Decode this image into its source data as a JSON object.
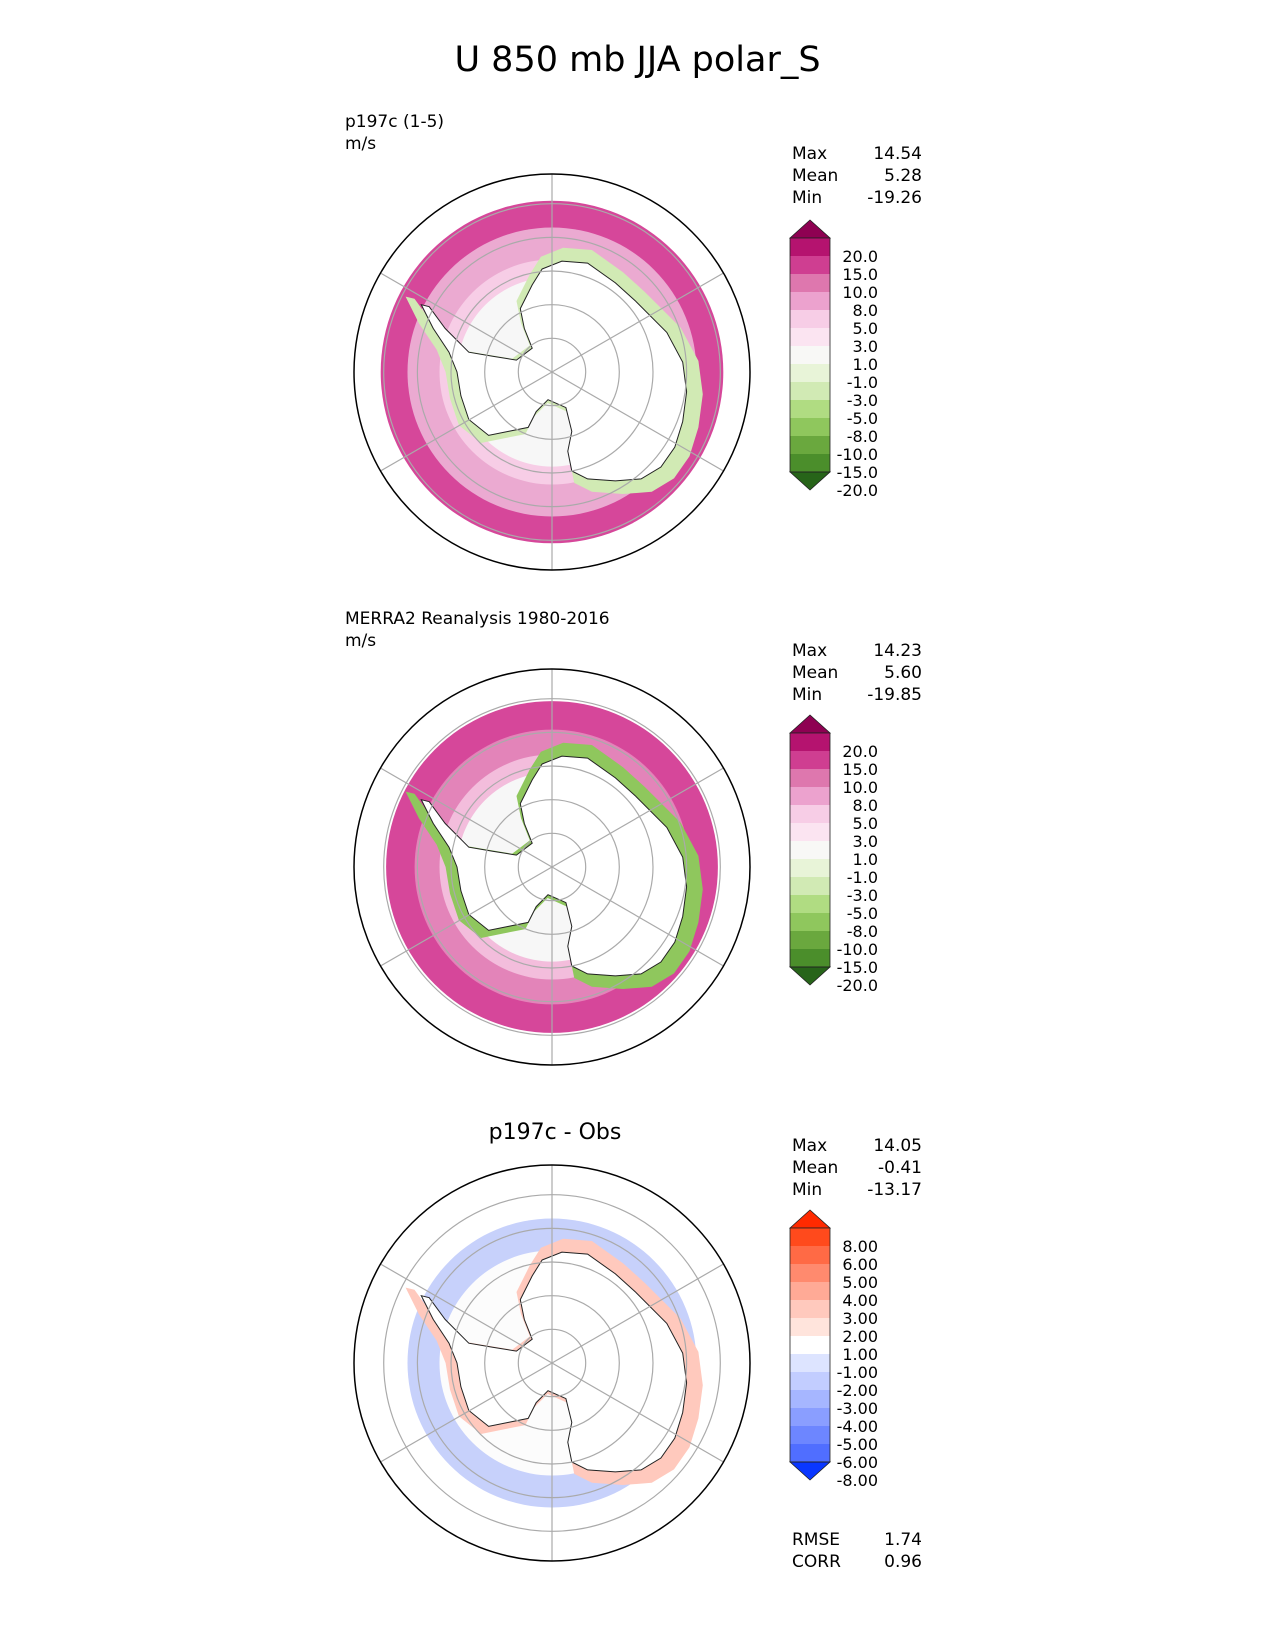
{
  "figure": {
    "title": "U 850 mb JJA polar_S"
  },
  "chart_data": [
    {
      "type": "heatmap",
      "panel": "test",
      "projection": "south-polar-stereographic",
      "title": "",
      "label_line1": "p197c (1-5)",
      "label_line2": "m/s",
      "stats": [
        {
          "label": "Max",
          "value": "14.54"
        },
        {
          "label": "Mean",
          "value": "5.28"
        },
        {
          "label": "Min",
          "value": "-19.26"
        }
      ],
      "colorbar": {
        "ticks": [
          "20.0",
          "15.0",
          "10.0",
          "8.0",
          "5.0",
          "3.0",
          "1.0",
          "-1.0",
          "-3.0",
          "-5.0",
          "-8.0",
          "-10.0",
          "-15.0",
          "-20.0"
        ],
        "colors": [
          "#8e0152",
          "#b5136f",
          "#cf3e91",
          "#de77ae",
          "#eca2ce",
          "#f7cde6",
          "#fbe4f1",
          "#f8f8f6",
          "#e8f4d8",
          "#d1eab4",
          "#b0dc82",
          "#8fc75d",
          "#6aa83e",
          "#4b8e2b",
          "#276419"
        ]
      },
      "bands": [
        {
          "level": 0.15,
          "color": "#d6479a"
        },
        {
          "level": 0.3,
          "color": "#ebaad1"
        },
        {
          "level": 0.48,
          "color": "#f7cde6"
        },
        {
          "level": 0.58,
          "color": "#f7f7f7"
        },
        {
          "level": 0.64,
          "color": "#d1eab4"
        }
      ]
    },
    {
      "type": "heatmap",
      "panel": "reference",
      "projection": "south-polar-stereographic",
      "title": "",
      "label_line1": "MERRA2 Reanalysis 1980-2016",
      "label_line2": "m/s",
      "stats": [
        {
          "label": "Max",
          "value": "14.23"
        },
        {
          "label": "Mean",
          "value": "5.60"
        },
        {
          "label": "Min",
          "value": "-19.85"
        }
      ],
      "colorbar": {
        "ticks": [
          "20.0",
          "15.0",
          "10.0",
          "8.0",
          "5.0",
          "3.0",
          "1.0",
          "-1.0",
          "-3.0",
          "-5.0",
          "-8.0",
          "-10.0",
          "-15.0",
          "-20.0"
        ],
        "colors": [
          "#8e0152",
          "#b5136f",
          "#cf3e91",
          "#de77ae",
          "#eca2ce",
          "#f7cde6",
          "#fbe4f1",
          "#f8f8f6",
          "#e8f4d8",
          "#d1eab4",
          "#b0dc82",
          "#8fc75d",
          "#6aa83e",
          "#4b8e2b",
          "#276419"
        ]
      },
      "bands": [
        {
          "level": 0.18,
          "color": "#d6479a"
        },
        {
          "level": 0.34,
          "color": "#e384b9"
        },
        {
          "level": 0.48,
          "color": "#f3bddc"
        },
        {
          "level": 0.58,
          "color": "#f7f7f7"
        },
        {
          "level": 0.64,
          "color": "#8fc75d"
        }
      ]
    },
    {
      "type": "heatmap",
      "panel": "difference",
      "projection": "south-polar-stereographic",
      "title": "p197c - Obs",
      "label_line1": "",
      "label_line2": "",
      "stats": [
        {
          "label": "Max",
          "value": "14.05"
        },
        {
          "label": "Mean",
          "value": "-0.41"
        },
        {
          "label": "Min",
          "value": "-13.17"
        }
      ],
      "extra_stats": [
        {
          "label": "RMSE",
          "value": "1.74"
        },
        {
          "label": "CORR",
          "value": "0.96"
        }
      ],
      "colorbar": {
        "ticks": [
          "8.00",
          "6.00",
          "5.00",
          "4.00",
          "3.00",
          "2.00",
          "1.00",
          "-1.00",
          "-2.00",
          "-3.00",
          "-4.00",
          "-5.00",
          "-6.00",
          "-8.00"
        ],
        "colors": [
          "#ff2a00",
          "#ff4a1c",
          "#ff6a45",
          "#ff8a6e",
          "#ffaa96",
          "#ffc9bd",
          "#ffe4dc",
          "#ffffff",
          "#dde4ff",
          "#c2cdff",
          "#a6b6ff",
          "#8a9eff",
          "#6d86ff",
          "#506eff",
          "#0a37ff"
        ]
      },
      "bands": [
        {
          "level": 0.3,
          "color": "#c7d1fb"
        },
        {
          "level": 0.48,
          "color": "#fcfcfc"
        },
        {
          "level": 0.64,
          "color": "#ffc9bd"
        }
      ]
    }
  ]
}
